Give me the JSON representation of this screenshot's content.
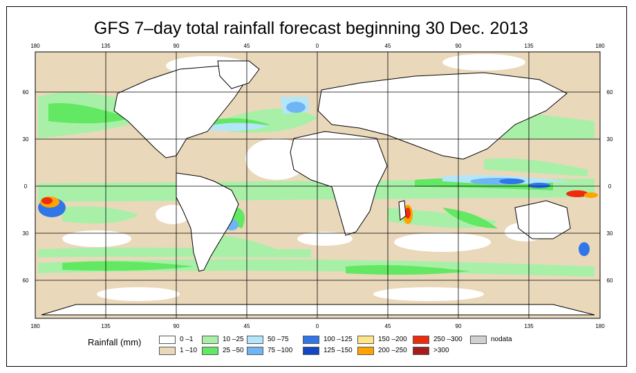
{
  "title": "GFS 7–day total rainfall forecast beginning 30 Dec. 2013",
  "axes": {
    "top_lon_ticks": [
      "180",
      "135",
      "90",
      "45",
      "0",
      "45",
      "90",
      "135",
      "180"
    ],
    "bottom_lon_ticks": [
      "180",
      "135",
      "90",
      "45",
      "0",
      "45",
      "90",
      "135",
      "180"
    ],
    "left_lat_ticks": [
      "60",
      "30",
      "0",
      "30",
      "60"
    ],
    "right_lat_ticks": [
      "60",
      "30",
      "0",
      "30",
      "60"
    ]
  },
  "legend": {
    "title": "Rainfall (mm)",
    "items": [
      {
        "label": "0 –1",
        "color": "#ffffff"
      },
      {
        "label": "1 –10",
        "color": "#ead8bb"
      },
      {
        "label": "10 –25",
        "color": "#a8f0a8"
      },
      {
        "label": "25 –50",
        "color": "#62e862"
      },
      {
        "label": "50 –75",
        "color": "#b4e6fa"
      },
      {
        "label": "75 –100",
        "color": "#6fb5f5"
      },
      {
        "label": "100 –125",
        "color": "#2f77e8"
      },
      {
        "label": "125 –150",
        "color": "#1347c4"
      },
      {
        "label": "150 –200",
        "color": "#ffe58a"
      },
      {
        "label": "200 –250",
        "color": "#ffa300"
      },
      {
        "label": "250 –300",
        "color": "#ef2b0e"
      },
      {
        "label": ">300",
        "color": "#a61b1b"
      },
      {
        "label": "nodata",
        "color": "#d0d0d0"
      }
    ]
  },
  "colors": {
    "ocean_base": "#ead8bb",
    "land": "#ffffff",
    "coastline": "#000000",
    "grid": "#000000"
  }
}
